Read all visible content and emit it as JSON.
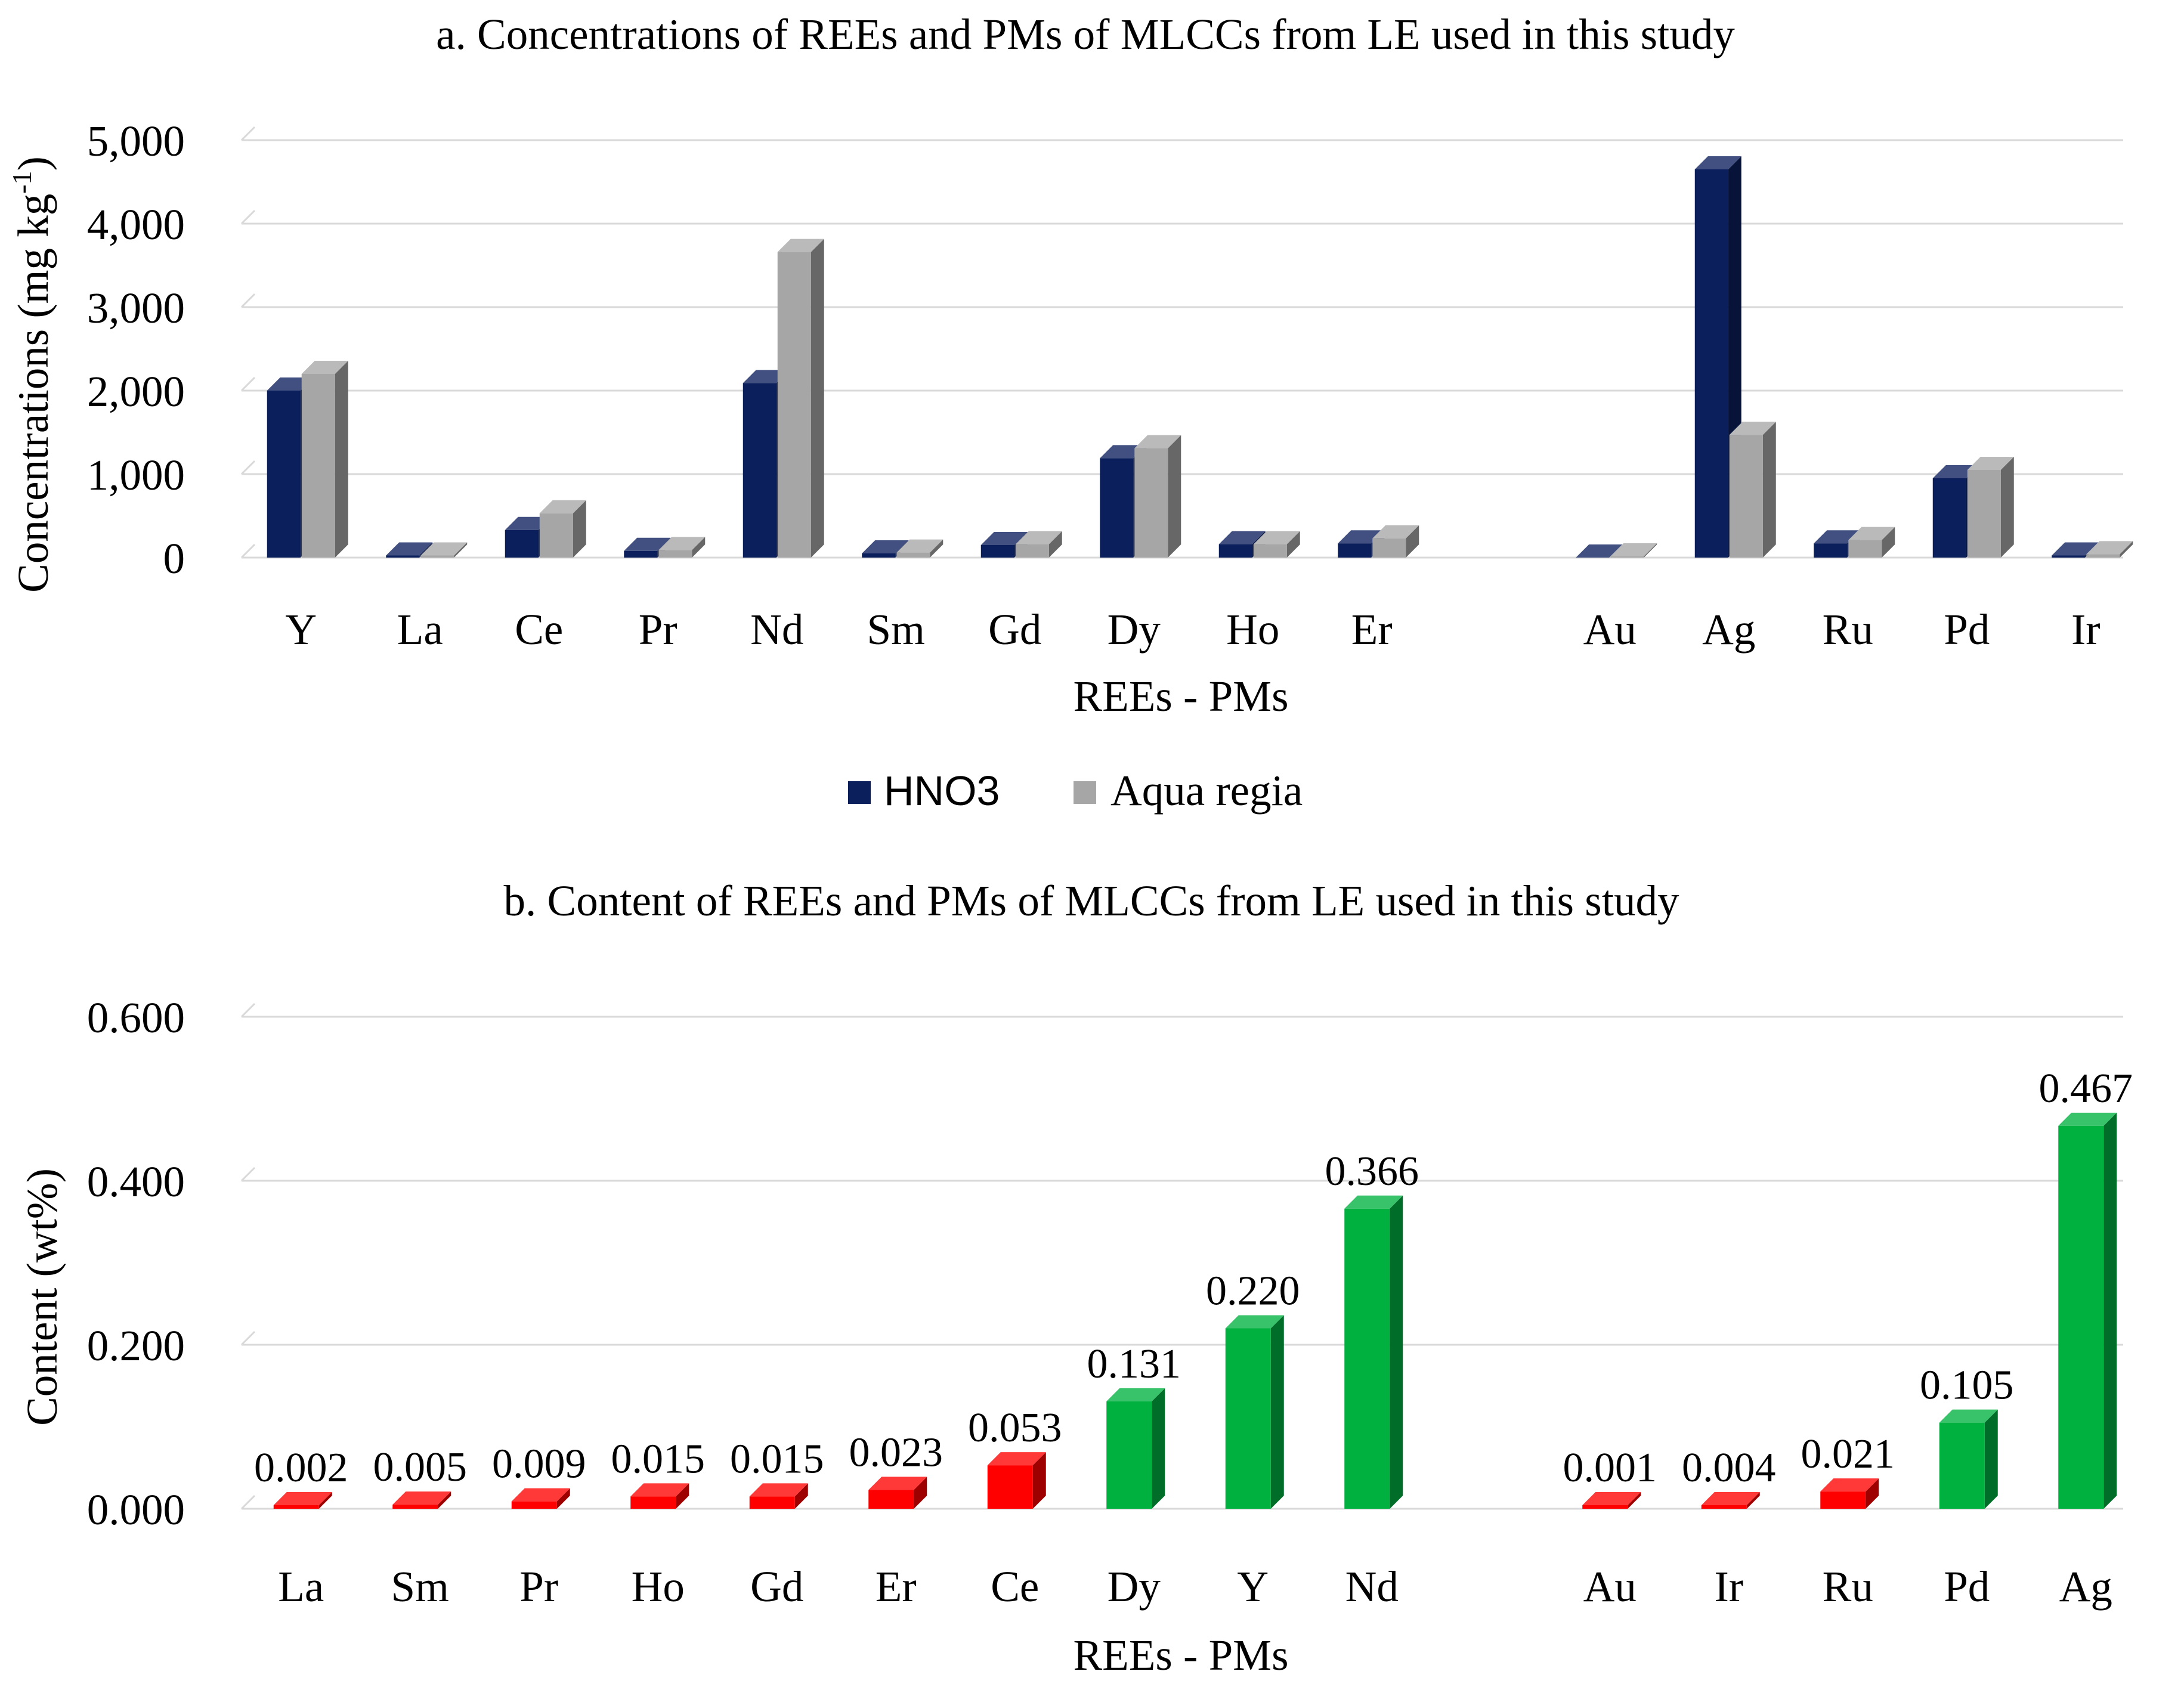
{
  "colors": {
    "hno3": "#0b1f5c",
    "aqua_regia": "#a6a6a6",
    "below_threshold": "#ff0000",
    "above_threshold": "#00b140",
    "gridline": "#d9d9d9"
  },
  "chart_data": [
    {
      "type": "bar",
      "style": "3d-clustered",
      "title": "a. Concentrations of REEs and PMs of MLCCs from LE used in this study",
      "xlabel": "REEs - PMs",
      "ylabel_main": "Concentrations (mg kg",
      "ylabel_sup": "-1",
      "ylabel_tail": ")",
      "ylim": [
        0,
        5000
      ],
      "yticks": [
        0,
        1000,
        2000,
        3000,
        4000,
        5000
      ],
      "ytick_labels": [
        "0",
        "1,000",
        "2,000",
        "3,000",
        "4,000",
        "5,000"
      ],
      "grid": true,
      "legend_position": "bottom",
      "categories": [
        "Y",
        "La",
        "Ce",
        "Pr",
        "Nd",
        "Sm",
        "Gd",
        "Dy",
        "Ho",
        "Er",
        "",
        "Au",
        "Ag",
        "Ru",
        "Pd",
        "Ir"
      ],
      "series": [
        {
          "name": "HNO3",
          "color_key": "hno3",
          "values": [
            2000,
            25,
            330,
            80,
            2090,
            50,
            150,
            1190,
            160,
            170,
            null,
            0,
            4650,
            170,
            950,
            25
          ]
        },
        {
          "name": "Aqua regia",
          "color_key": "aqua_regia",
          "values": [
            2200,
            25,
            530,
            90,
            3660,
            60,
            160,
            1310,
            160,
            230,
            null,
            15,
            1470,
            210,
            1050,
            40
          ]
        }
      ]
    },
    {
      "type": "bar",
      "style": "3d",
      "title": "b. Content of REEs and PMs of MLCCs from LE used in this study",
      "xlabel": "REEs - PMs",
      "ylabel": "Content (wt%)",
      "ylim": [
        0,
        0.6
      ],
      "yticks": [
        0,
        0.2,
        0.4,
        0.6
      ],
      "ytick_labels": [
        "0.000",
        "0.200",
        "0.400",
        "0.600"
      ],
      "grid": true,
      "categories": [
        "La",
        "Sm",
        "Pr",
        "Ho",
        "Gd",
        "Er",
        "Ce",
        "Dy",
        "Y",
        "Nd",
        "",
        "Au",
        "Ir",
        "Ru",
        "Pd",
        "Ag"
      ],
      "values": [
        0.002,
        0.005,
        0.009,
        0.015,
        0.015,
        0.023,
        0.053,
        0.131,
        0.22,
        0.366,
        null,
        0.001,
        0.004,
        0.021,
        0.105,
        0.467
      ],
      "value_labels": [
        "0.002",
        "0.005",
        "0.009",
        "0.015",
        "0.015",
        "0.023",
        "0.053",
        "0.131",
        "0.220",
        "0.366",
        "",
        "0.001",
        "0.004",
        "0.021",
        "0.105",
        "0.467"
      ],
      "color_keys": [
        "below_threshold",
        "below_threshold",
        "below_threshold",
        "below_threshold",
        "below_threshold",
        "below_threshold",
        "below_threshold",
        "above_threshold",
        "above_threshold",
        "above_threshold",
        "",
        "below_threshold",
        "below_threshold",
        "below_threshold",
        "above_threshold",
        "above_threshold"
      ]
    }
  ]
}
